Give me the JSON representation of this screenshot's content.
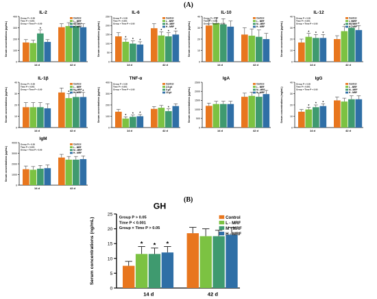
{
  "figure": {
    "panel_a": "(A)",
    "panel_b": "(B)"
  },
  "colors": {
    "control": "#e8761e",
    "l_mrf": "#7cc242",
    "m_mrf": "#3f9a6f",
    "h_mrf": "#2f6fa6",
    "error": "#222222",
    "axis": "#000000"
  },
  "chart_data": [
    {
      "id": "il2",
      "type": "bar",
      "title": "IL-2",
      "ylabel": "Serum concentrations (pg/mL)",
      "categories": [
        "14 d",
        "42 d"
      ],
      "ylim": [
        0,
        400
      ],
      "yticks": [
        0,
        100,
        200,
        300,
        400
      ],
      "stats": [
        "Group P < 0.05",
        "Time P < 0.001",
        "Group × Time P < 0.05"
      ],
      "legend": [
        "Control",
        "L - MRF",
        "M - MRF",
        "H - MRF"
      ],
      "series": [
        {
          "name": "Control",
          "values": [
            170,
            305
          ],
          "errors": [
            25,
            30
          ],
          "sig": [
            "",
            ""
          ]
        },
        {
          "name": "L - MRF",
          "values": [
            165,
            315
          ],
          "errors": [
            25,
            30
          ],
          "sig": [
            "",
            ""
          ]
        },
        {
          "name": "M - MRF",
          "values": [
            250,
            315
          ],
          "errors": [
            30,
            30
          ],
          "sig": [
            "*",
            ""
          ]
        },
        {
          "name": "H - MRF",
          "values": [
            175,
            305
          ],
          "errors": [
            20,
            30
          ],
          "sig": [
            "",
            ""
          ]
        }
      ]
    },
    {
      "id": "il6",
      "type": "bar",
      "title": "IL-6",
      "ylabel": "Serum concentrations (pg/mL)",
      "categories": [
        "14 d",
        "42 d"
      ],
      "ylim": [
        0,
        250
      ],
      "yticks": [
        0,
        50,
        100,
        150,
        200,
        250
      ],
      "stats": [
        "Group P < 0.05",
        "Time P < 0.001",
        "Group × Time P < 0.05"
      ],
      "legend": [
        "Control",
        "L - MRF",
        "M - MRF",
        "H - MRF"
      ],
      "series": [
        {
          "name": "Control",
          "values": [
            140,
            185
          ],
          "errors": [
            20,
            25
          ],
          "sig": [
            "",
            ""
          ]
        },
        {
          "name": "L - MRF",
          "values": [
            110,
            145
          ],
          "errors": [
            15,
            20
          ],
          "sig": [
            "*",
            "*"
          ]
        },
        {
          "name": "M - MRF",
          "values": [
            100,
            140
          ],
          "errors": [
            15,
            20
          ],
          "sig": [
            "*",
            "*"
          ]
        },
        {
          "name": "H - MRF",
          "values": [
            95,
            150
          ],
          "errors": [
            15,
            20
          ],
          "sig": [
            "*",
            "*"
          ]
        }
      ]
    },
    {
      "id": "il10",
      "type": "bar",
      "title": "IL-10",
      "ylabel": "Serum concentrations (pg/mL)",
      "categories": [
        "14 d",
        "42 d"
      ],
      "ylim": [
        0,
        40
      ],
      "yticks": [
        0,
        10,
        20,
        30,
        40
      ],
      "stats": [
        "Group P > 0.05",
        "Time P < 0.001",
        "Group × Time P > 0.05"
      ],
      "legend": [
        "Control",
        "L - MRF",
        "M - MRF",
        "H - MRF"
      ],
      "series": [
        {
          "name": "Control",
          "values": [
            32,
            24
          ],
          "errors": [
            5,
            6
          ],
          "sig": [
            "",
            ""
          ]
        },
        {
          "name": "L - MRF",
          "values": [
            34,
            23
          ],
          "errors": [
            5,
            6
          ],
          "sig": [
            "",
            ""
          ]
        },
        {
          "name": "M - MRF",
          "values": [
            33,
            22
          ],
          "errors": [
            5,
            6
          ],
          "sig": [
            "",
            ""
          ]
        },
        {
          "name": "H - MRF",
          "values": [
            31,
            20
          ],
          "errors": [
            5,
            5
          ],
          "sig": [
            "",
            ""
          ]
        }
      ]
    },
    {
      "id": "il12",
      "type": "bar",
      "title": "IL-12",
      "ylabel": "Serum concentrations (pg/mL)",
      "categories": [
        "14 d",
        "42 d"
      ],
      "ylim": [
        0,
        40
      ],
      "yticks": [
        0,
        10,
        20,
        30,
        40
      ],
      "stats": [
        "Group P < 0.05",
        "Time P < 0.001",
        "Group × Time P < 0.05"
      ],
      "legend": [
        "Control",
        "L - MRF",
        "M - MRF",
        "H - MRF"
      ],
      "series": [
        {
          "name": "Control",
          "values": [
            17,
            20
          ],
          "errors": [
            3,
            3
          ],
          "sig": [
            "",
            ""
          ]
        },
        {
          "name": "L - MRF",
          "values": [
            22,
            27
          ],
          "errors": [
            3,
            4
          ],
          "sig": [
            "*",
            "*"
          ]
        },
        {
          "name": "M - MRF",
          "values": [
            21,
            30
          ],
          "errors": [
            3,
            4
          ],
          "sig": [
            "*",
            "*"
          ]
        },
        {
          "name": "H - MRF",
          "values": [
            21,
            28
          ],
          "errors": [
            3,
            4
          ],
          "sig": [
            "*",
            "*"
          ]
        }
      ]
    },
    {
      "id": "il1b",
      "type": "bar",
      "title": "IL-1β",
      "ylabel": "Serum concentrations (pg/mL)",
      "categories": [
        "14 d",
        "42 d"
      ],
      "ylim": [
        0,
        40
      ],
      "yticks": [
        0,
        10,
        20,
        30,
        40
      ],
      "stats": [
        "Group P < 0.05",
        "Time P < 0.001",
        "Group × Time P < 0.05"
      ],
      "legend": [
        "Control",
        "L - MRF",
        "M - MRF",
        "H - MRF"
      ],
      "series": [
        {
          "name": "Control",
          "values": [
            18,
            31
          ],
          "errors": [
            4,
            4
          ],
          "sig": [
            "",
            ""
          ]
        },
        {
          "name": "L - MRF",
          "values": [
            18,
            26
          ],
          "errors": [
            4,
            4
          ],
          "sig": [
            "",
            "*"
          ]
        },
        {
          "name": "M - MRF",
          "values": [
            18,
            27
          ],
          "errors": [
            4,
            4
          ],
          "sig": [
            "",
            "*"
          ]
        },
        {
          "name": "H - MRF",
          "values": [
            17,
            27
          ],
          "errors": [
            4,
            4
          ],
          "sig": [
            "",
            "*"
          ]
        }
      ]
    },
    {
      "id": "tnfa",
      "type": "bar",
      "title": "TNF-α",
      "ylabel": "Serum concentrations (pg/mL)",
      "categories": [
        "14 d",
        "42 d"
      ],
      "ylim": [
        0,
        400
      ],
      "yticks": [
        0,
        100,
        200,
        300,
        400
      ],
      "stats": [
        "Group P < 0.05",
        "Time P < 0.001",
        "Group × Time P < 0.05"
      ],
      "legend": [
        "Control",
        "2.5 g/t",
        "5 g/t",
        "10 g/t"
      ],
      "series": [
        {
          "name": "Control",
          "values": [
            140,
            165
          ],
          "errors": [
            20,
            20
          ],
          "sig": [
            "",
            ""
          ]
        },
        {
          "name": "2.5 g/t",
          "values": [
            80,
            175
          ],
          "errors": [
            15,
            20
          ],
          "sig": [
            "*",
            ""
          ]
        },
        {
          "name": "5 g/t",
          "values": [
            95,
            145
          ],
          "errors": [
            15,
            20
          ],
          "sig": [
            "*",
            "*"
          ]
        },
        {
          "name": "10 g/t",
          "values": [
            100,
            190
          ],
          "errors": [
            15,
            20
          ],
          "sig": [
            "*",
            ""
          ]
        }
      ]
    },
    {
      "id": "iga",
      "type": "bar",
      "title": "IgA",
      "ylabel": "Serum concentrations (μg/mL)",
      "categories": [
        "14 d",
        "42 d"
      ],
      "ylim": [
        0,
        2500
      ],
      "yticks": [
        0,
        500,
        1000,
        1500,
        2000,
        2500
      ],
      "stats": [],
      "legend": [
        "Control",
        "L - MRF",
        "M - MRF",
        "H - MRF"
      ],
      "series": [
        {
          "name": "Control",
          "values": [
            1200,
            1700
          ],
          "errors": [
            150,
            200
          ],
          "sig": [
            "",
            ""
          ]
        },
        {
          "name": "L - MRF",
          "values": [
            1300,
            1750
          ],
          "errors": [
            150,
            200
          ],
          "sig": [
            "",
            ""
          ]
        },
        {
          "name": "M - MRF",
          "values": [
            1300,
            1700
          ],
          "errors": [
            150,
            200
          ],
          "sig": [
            "",
            ""
          ]
        },
        {
          "name": "H - MRF",
          "values": [
            1300,
            1850
          ],
          "errors": [
            150,
            200
          ],
          "sig": [
            "",
            ""
          ]
        }
      ]
    },
    {
      "id": "igg",
      "type": "bar",
      "title": "IgG",
      "ylabel": "Serum concentrations (mg/mL)",
      "categories": [
        "14 d",
        "42 d"
      ],
      "ylim": [
        0,
        40
      ],
      "yticks": [
        0,
        10,
        20,
        30,
        40
      ],
      "stats": [
        "Group P < 0.05",
        "Time P < 0.001",
        "Group × Time P < 0.05"
      ],
      "legend": [
        "Control",
        "L - MRF",
        "M - MRF",
        "H - MRF"
      ],
      "series": [
        {
          "name": "Control",
          "values": [
            14,
            24
          ],
          "errors": [
            2,
            3
          ],
          "sig": [
            "",
            ""
          ]
        },
        {
          "name": "L - MRF",
          "values": [
            16,
            23
          ],
          "errors": [
            2,
            3
          ],
          "sig": [
            "*",
            ""
          ]
        },
        {
          "name": "M - MRF",
          "values": [
            18,
            25
          ],
          "errors": [
            2,
            3
          ],
          "sig": [
            "*",
            ""
          ]
        },
        {
          "name": "H - MRF",
          "values": [
            19,
            25
          ],
          "errors": [
            2,
            3
          ],
          "sig": [
            "*",
            ""
          ]
        }
      ]
    },
    {
      "id": "igm",
      "type": "bar",
      "title": "IgM",
      "ylabel": "Serum concentrations (μg/mL)",
      "categories": [
        "14 d",
        "42 d"
      ],
      "ylim": [
        0,
        4000
      ],
      "yticks": [
        0,
        1000,
        2000,
        3000,
        4000
      ],
      "stats": [
        "Group P > 0.05",
        "Time P < 0.001",
        "Group × Time P > 0.05"
      ],
      "legend": [
        "Control",
        "L - MRF",
        "M - MRF",
        "H - MRF"
      ],
      "series": [
        {
          "name": "Control",
          "values": [
            1500,
            2600
          ],
          "errors": [
            300,
            300
          ],
          "sig": [
            "",
            ""
          ]
        },
        {
          "name": "L - MRF",
          "values": [
            1450,
            2400
          ],
          "errors": [
            300,
            300
          ],
          "sig": [
            "",
            ""
          ]
        },
        {
          "name": "M - MRF",
          "values": [
            1550,
            2400
          ],
          "errors": [
            300,
            300
          ],
          "sig": [
            "",
            ""
          ]
        },
        {
          "name": "H - MRF",
          "values": [
            1600,
            2450
          ],
          "errors": [
            300,
            300
          ],
          "sig": [
            "",
            ""
          ]
        }
      ]
    },
    {
      "id": "gh",
      "type": "bar",
      "title": "GH",
      "ylabel": "Serum concentrations (ng/mL)",
      "categories": [
        "14 d",
        "42 d"
      ],
      "ylim": [
        0,
        25
      ],
      "yticks": [
        0,
        5,
        10,
        15,
        20,
        25
      ],
      "stats": [
        "Group P > 0.05",
        "Time P < 0.001",
        "Group × Time P > 0.05"
      ],
      "legend": [
        "Control",
        "L - MRF",
        "M - MRF",
        "H - MRF"
      ],
      "series": [
        {
          "name": "Control",
          "values": [
            7.5,
            18.5
          ],
          "errors": [
            1.5,
            2
          ],
          "sig": [
            "",
            ""
          ]
        },
        {
          "name": "L - MRF",
          "values": [
            11.5,
            17.5
          ],
          "errors": [
            2.5,
            2.5
          ],
          "sig": [
            "*",
            ""
          ]
        },
        {
          "name": "M - MRF",
          "values": [
            11.5,
            17.5
          ],
          "errors": [
            2,
            2
          ],
          "sig": [
            "*",
            ""
          ]
        },
        {
          "name": "H - MRF",
          "values": [
            12,
            18
          ],
          "errors": [
            2,
            2.5
          ],
          "sig": [
            "*",
            ""
          ]
        }
      ]
    }
  ]
}
